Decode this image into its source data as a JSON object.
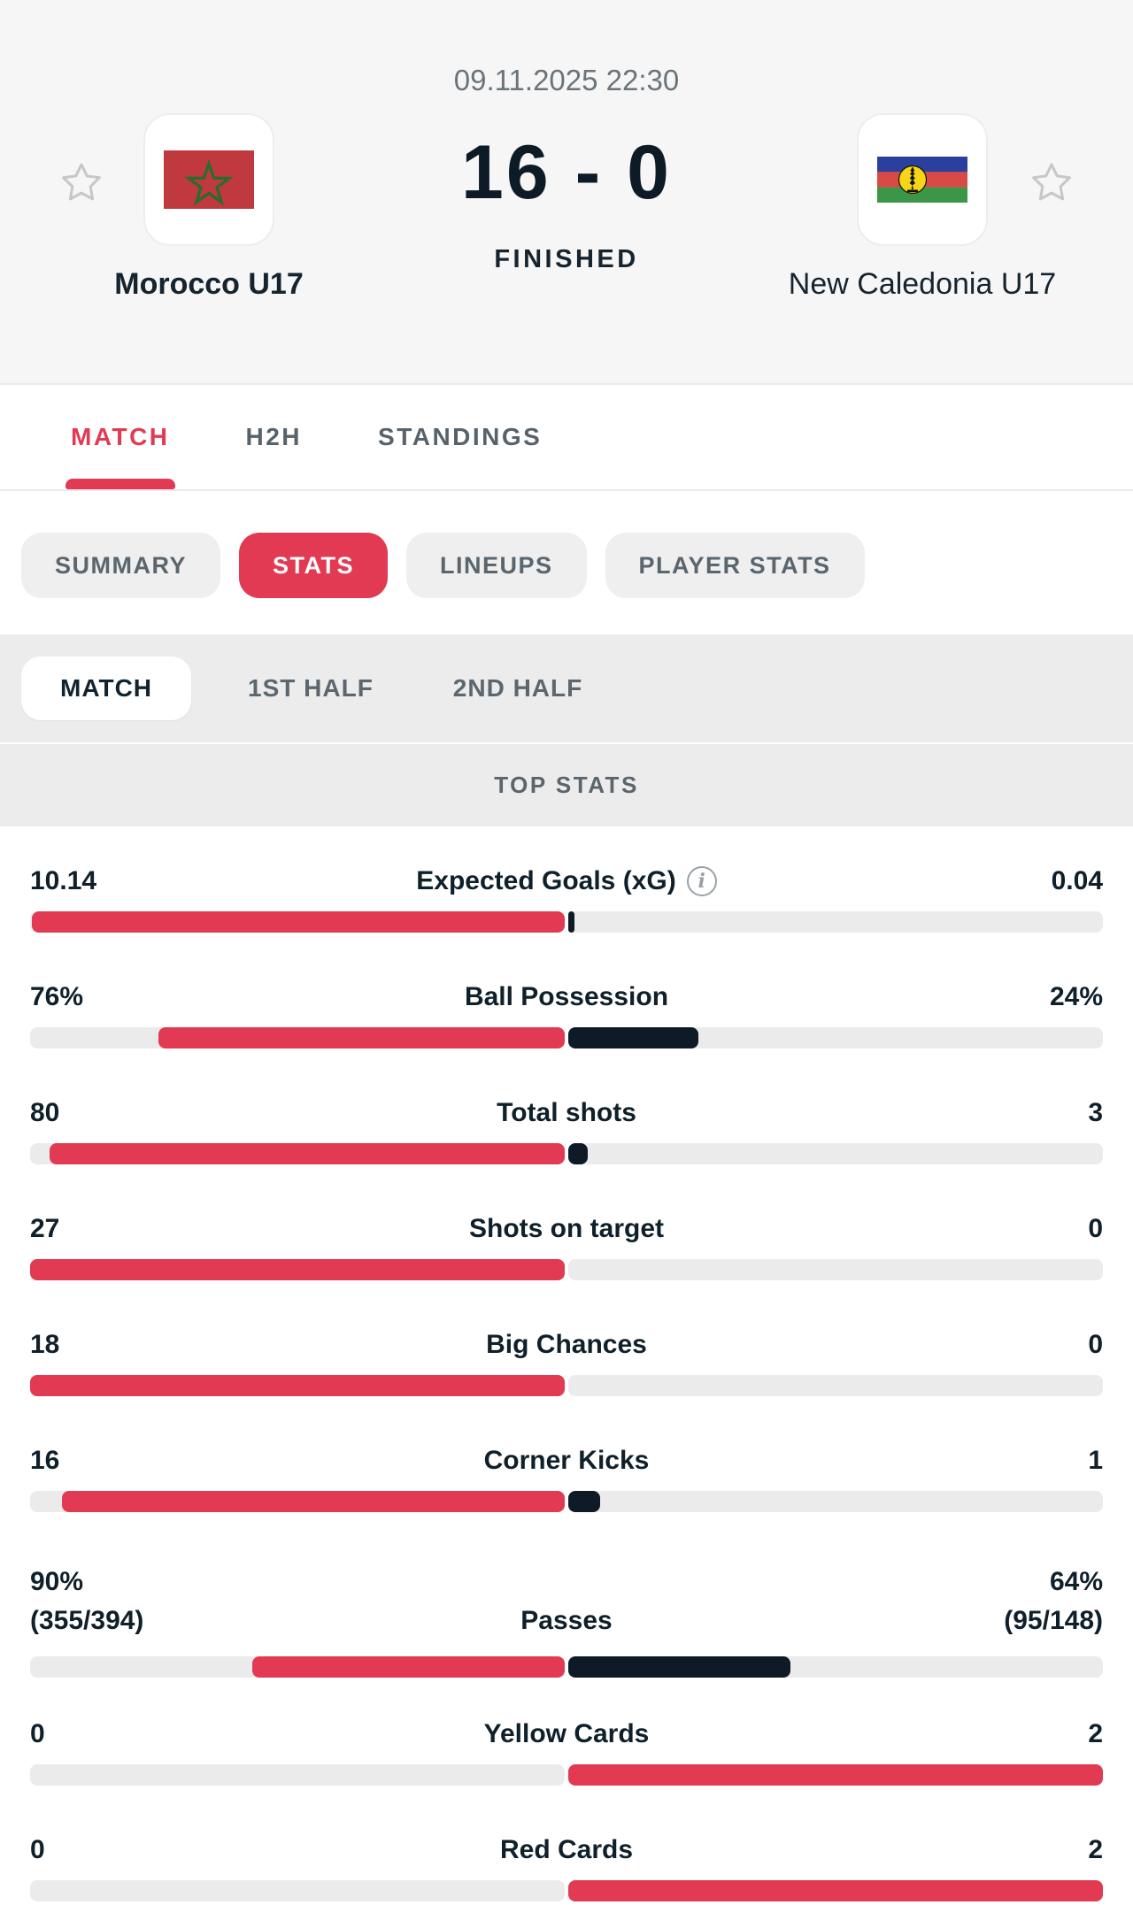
{
  "header": {
    "datetime": "09.11.2025 22:30",
    "score": "16 - 0",
    "status": "FINISHED",
    "home": {
      "name": "Morocco U17"
    },
    "away": {
      "name": "New Caledonia U17"
    }
  },
  "tabs": [
    {
      "label": "MATCH",
      "active": true
    },
    {
      "label": "H2H",
      "active": false
    },
    {
      "label": "STANDINGS",
      "active": false
    }
  ],
  "sub_tabs": [
    {
      "label": "SUMMARY",
      "active": false
    },
    {
      "label": "STATS",
      "active": true
    },
    {
      "label": "LINEUPS",
      "active": false
    },
    {
      "label": "PLAYER STATS",
      "active": false
    }
  ],
  "period_tabs": [
    {
      "label": "MATCH",
      "active": true
    },
    {
      "label": "1ST HALF",
      "active": false
    },
    {
      "label": "2ND HALF",
      "active": false
    }
  ],
  "section_title": "TOP STATS",
  "icons": {
    "favorite_star": "star-outline-icon",
    "info": "info-circle-icon"
  },
  "colors": {
    "accent_red": "#e13a52",
    "bar_navy": "#0e1b26",
    "track_gray": "#ebebeb"
  },
  "stats": [
    {
      "label": "Expected Goals (xG)",
      "info": true,
      "home": "10.14",
      "away": "0.04",
      "home_fill_pct": 99.6,
      "away_fill_pct": 0.4,
      "home_color": "red",
      "away_color": "navy",
      "away_sliver": true
    },
    {
      "label": "Ball Possession",
      "home": "76%",
      "away": "24%",
      "home_fill_pct": 76,
      "away_fill_pct": 24.3,
      "home_color": "red",
      "away_color": "navy"
    },
    {
      "label": "Total shots",
      "home": "80",
      "away": "3",
      "home_fill_pct": 96.4,
      "away_fill_pct": 3.6,
      "home_color": "red",
      "away_color": "navy"
    },
    {
      "label": "Shots on target",
      "home": "27",
      "away": "0",
      "home_fill_pct": 100,
      "away_fill_pct": 0,
      "home_color": "red",
      "away_color": "navy"
    },
    {
      "label": "Big Chances",
      "home": "18",
      "away": "0",
      "home_fill_pct": 100,
      "away_fill_pct": 0,
      "home_color": "red",
      "away_color": "navy"
    },
    {
      "label": "Corner Kicks",
      "home": "16",
      "away": "1",
      "home_fill_pct": 94.1,
      "away_fill_pct": 5.9,
      "home_color": "red",
      "away_color": "navy"
    },
    {
      "label": "Passes",
      "home": "90%",
      "home_sub": "(355/394)",
      "away": "64%",
      "away_sub": "(95/148)",
      "home_fill_pct": 58.4,
      "away_fill_pct": 41.6,
      "home_color": "red",
      "away_color": "navy"
    },
    {
      "label": "Yellow Cards",
      "home": "0",
      "away": "2",
      "home_fill_pct": 0,
      "away_fill_pct": 100,
      "home_color": "red",
      "away_color": "red"
    },
    {
      "label": "Red Cards",
      "home": "0",
      "away": "2",
      "home_fill_pct": 0,
      "away_fill_pct": 100,
      "home_color": "red",
      "away_color": "red"
    }
  ]
}
